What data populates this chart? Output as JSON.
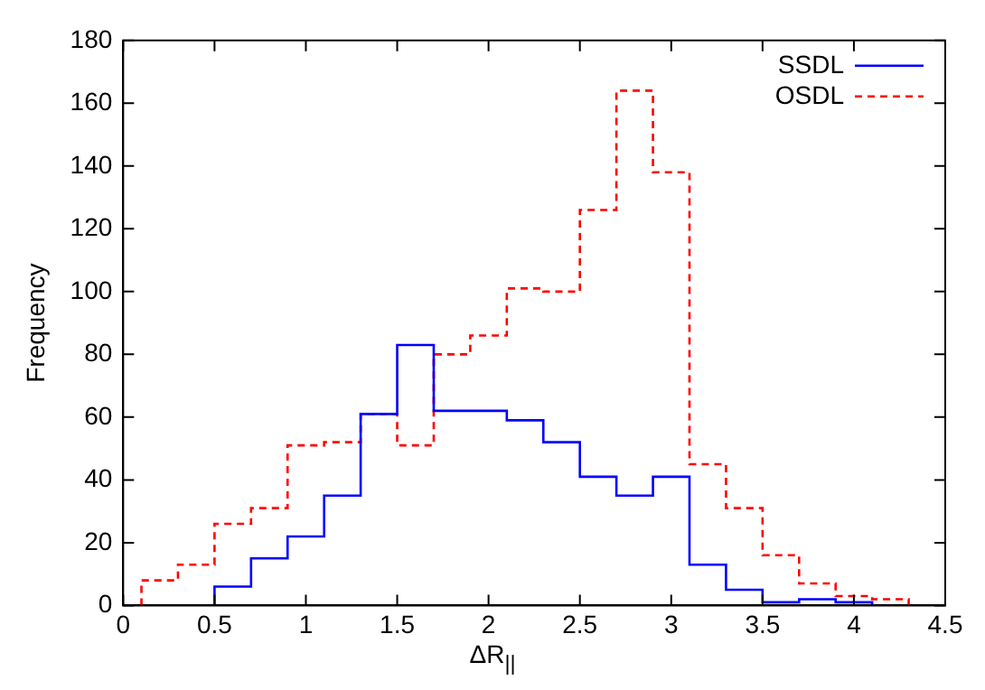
{
  "chart_data": {
    "type": "histogram",
    "xlabel": "ΔR$_{||}$",
    "ylabel": "Frequency",
    "bins": [
      0.1,
      0.3,
      0.5,
      0.7,
      0.9,
      1.1,
      1.3,
      1.5,
      1.7,
      1.9,
      2.1,
      2.3,
      2.5,
      2.7,
      2.9,
      3.1,
      3.3,
      3.5,
      3.7,
      3.9,
      4.1,
      4.3
    ],
    "series": [
      {
        "name": "SSDL",
        "color": "#0000ff",
        "line_style": "solid",
        "bins": [
          0.5,
          0.7,
          0.9,
          1.1,
          1.3,
          1.5,
          1.7,
          1.9,
          2.1,
          2.3,
          2.5,
          2.7,
          2.9,
          3.1,
          3.3,
          3.5,
          3.7,
          3.9,
          4.1
        ],
        "values": [
          6,
          15,
          22,
          35,
          61,
          83,
          62,
          62,
          59,
          52,
          41,
          35,
          41,
          13,
          5,
          1,
          2,
          1
        ]
      },
      {
        "name": "OSDL",
        "color": "#ff0000",
        "line_style": "dashed",
        "values": [
          8,
          13,
          26,
          31,
          51,
          52,
          61,
          51,
          80,
          86,
          101,
          100,
          126,
          164,
          138,
          45,
          31,
          16,
          7,
          3,
          2
        ]
      }
    ],
    "xlim": [
      0,
      4.5
    ],
    "xticks": [
      0,
      0.5,
      1,
      1.5,
      2,
      2.5,
      3,
      3.5,
      4,
      4.5
    ],
    "ylim": [
      0,
      180
    ],
    "yticks": [
      0,
      20,
      40,
      60,
      80,
      100,
      120,
      140,
      160,
      180
    ],
    "grid": false,
    "legend": "top right"
  }
}
